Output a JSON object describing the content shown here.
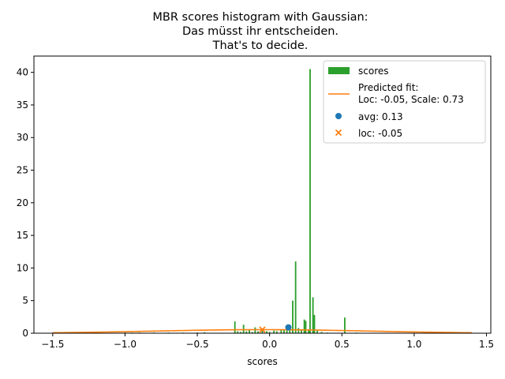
{
  "chart_data": {
    "type": "bar",
    "title": [
      "MBR scores histogram with Gaussian:",
      "Das müsst ihr entscheiden.",
      "That's to decide."
    ],
    "xlabel": "scores",
    "ylabel": "",
    "xlim": [
      -1.63,
      1.53
    ],
    "ylim": [
      0,
      42.5
    ],
    "xticks": [
      -1.5,
      -1.0,
      -0.5,
      0.0,
      0.5,
      1.0,
      1.5
    ],
    "xtick_labels": [
      "−1.5",
      "−1.0",
      "−0.5",
      "0.0",
      "0.5",
      "1.0",
      "1.5"
    ],
    "yticks": [
      0,
      5,
      10,
      15,
      20,
      25,
      30,
      35,
      40
    ],
    "ytick_labels": [
      "0",
      "5",
      "10",
      "15",
      "20",
      "25",
      "30",
      "35",
      "40"
    ],
    "legend_position": "top-right",
    "histogram": {
      "name": "scores",
      "color": "#2ca02c",
      "bin_width": 0.01,
      "bars": [
        {
          "x": -1.0,
          "y": 0.1
        },
        {
          "x": -0.95,
          "y": 0.1
        },
        {
          "x": -0.9,
          "y": 0.1
        },
        {
          "x": -0.8,
          "y": 0.1
        },
        {
          "x": -0.7,
          "y": 0.1
        },
        {
          "x": -0.6,
          "y": 0.1
        },
        {
          "x": -0.5,
          "y": 0.1
        },
        {
          "x": -0.45,
          "y": 0.15
        },
        {
          "x": -0.24,
          "y": 1.8
        },
        {
          "x": -0.22,
          "y": 0.3
        },
        {
          "x": -0.2,
          "y": 0.2
        },
        {
          "x": -0.18,
          "y": 1.3
        },
        {
          "x": -0.16,
          "y": 0.3
        },
        {
          "x": -0.14,
          "y": 0.5
        },
        {
          "x": -0.12,
          "y": 0.2
        },
        {
          "x": -0.1,
          "y": 0.9
        },
        {
          "x": -0.08,
          "y": 0.3
        },
        {
          "x": -0.05,
          "y": 0.4
        },
        {
          "x": -0.02,
          "y": 0.3
        },
        {
          "x": 0.0,
          "y": 0.2
        },
        {
          "x": 0.03,
          "y": 0.4
        },
        {
          "x": 0.05,
          "y": 0.3
        },
        {
          "x": 0.08,
          "y": 0.5
        },
        {
          "x": 0.1,
          "y": 0.6
        },
        {
          "x": 0.12,
          "y": 0.8
        },
        {
          "x": 0.14,
          "y": 1.1
        },
        {
          "x": 0.16,
          "y": 5.0
        },
        {
          "x": 0.18,
          "y": 11.0
        },
        {
          "x": 0.2,
          "y": 0.8
        },
        {
          "x": 0.22,
          "y": 0.5
        },
        {
          "x": 0.24,
          "y": 2.1
        },
        {
          "x": 0.25,
          "y": 1.9
        },
        {
          "x": 0.27,
          "y": 0.6
        },
        {
          "x": 0.28,
          "y": 40.5
        },
        {
          "x": 0.3,
          "y": 5.5
        },
        {
          "x": 0.31,
          "y": 2.8
        },
        {
          "x": 0.33,
          "y": 0.4
        },
        {
          "x": 0.36,
          "y": 0.2
        },
        {
          "x": 0.4,
          "y": 0.1
        },
        {
          "x": 0.52,
          "y": 2.4
        },
        {
          "x": 0.6,
          "y": 0.1
        }
      ]
    },
    "fit": {
      "name": "Predicted fit:\nLoc: -0.05, Scale: 0.73",
      "legend_lines": [
        "Predicted fit:",
        "Loc: -0.05, Scale: 0.73"
      ],
      "color": "#ff7f0e",
      "loc": -0.05,
      "scale": 0.73,
      "x_range": [
        -1.5,
        1.4
      ]
    },
    "avg_point": {
      "name": "avg: 0.13",
      "x": 0.13,
      "y": 0.9,
      "color": "#1f77b4",
      "marker": "circle"
    },
    "loc_point": {
      "name": "loc: -0.05",
      "x": -0.05,
      "y": 0.55,
      "color": "#ff7f0e",
      "marker": "x"
    }
  }
}
